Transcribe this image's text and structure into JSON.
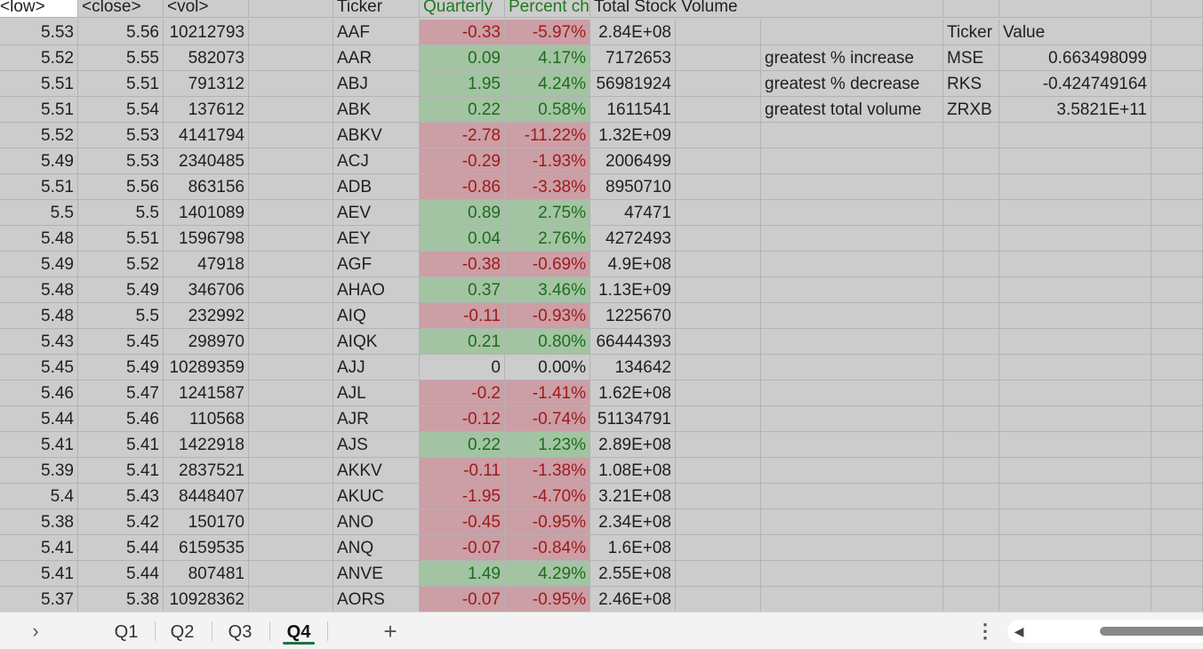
{
  "headers": {
    "low": "<low>",
    "close": "<close>",
    "vol": "<vol>",
    "ticker": "Ticker",
    "quarterly": "Quarterly",
    "percent": "Percent ch",
    "total": "Total Stock Volume"
  },
  "rows": [
    {
      "low": "5.53",
      "close": "5.56",
      "vol": "10212793",
      "ticker": "AAF",
      "qc": "-0.33",
      "pc": "-5.97%",
      "tv": "2.84E+08",
      "status": "neg"
    },
    {
      "low": "5.52",
      "close": "5.55",
      "vol": "582073",
      "ticker": "AAR",
      "qc": "0.09",
      "pc": "4.17%",
      "tv": "7172653",
      "status": "pos"
    },
    {
      "low": "5.51",
      "close": "5.51",
      "vol": "791312",
      "ticker": "ABJ",
      "qc": "1.95",
      "pc": "4.24%",
      "tv": "56981924",
      "status": "pos"
    },
    {
      "low": "5.51",
      "close": "5.54",
      "vol": "137612",
      "ticker": "ABK",
      "qc": "0.22",
      "pc": "0.58%",
      "tv": "1611541",
      "status": "pos"
    },
    {
      "low": "5.52",
      "close": "5.53",
      "vol": "4141794",
      "ticker": "ABKV",
      "qc": "-2.78",
      "pc": "-11.22%",
      "tv": "1.32E+09",
      "status": "neg"
    },
    {
      "low": "5.49",
      "close": "5.53",
      "vol": "2340485",
      "ticker": "ACJ",
      "qc": "-0.29",
      "pc": "-1.93%",
      "tv": "2006499",
      "status": "neg"
    },
    {
      "low": "5.51",
      "close": "5.56",
      "vol": "863156",
      "ticker": "ADB",
      "qc": "-0.86",
      "pc": "-3.38%",
      "tv": "8950710",
      "status": "neg"
    },
    {
      "low": "5.5",
      "close": "5.5",
      "vol": "1401089",
      "ticker": "AEV",
      "qc": "0.89",
      "pc": "2.75%",
      "tv": "47471",
      "status": "pos"
    },
    {
      "low": "5.48",
      "close": "5.51",
      "vol": "1596798",
      "ticker": "AEY",
      "qc": "0.04",
      "pc": "2.76%",
      "tv": "4272493",
      "status": "pos"
    },
    {
      "low": "5.49",
      "close": "5.52",
      "vol": "47918",
      "ticker": "AGF",
      "qc": "-0.38",
      "pc": "-0.69%",
      "tv": "4.9E+08",
      "status": "neg"
    },
    {
      "low": "5.48",
      "close": "5.49",
      "vol": "346706",
      "ticker": "AHAO",
      "qc": "0.37",
      "pc": "3.46%",
      "tv": "1.13E+09",
      "status": "pos"
    },
    {
      "low": "5.48",
      "close": "5.5",
      "vol": "232992",
      "ticker": "AIQ",
      "qc": "-0.11",
      "pc": "-0.93%",
      "tv": "1225670",
      "status": "neg"
    },
    {
      "low": "5.43",
      "close": "5.45",
      "vol": "298970",
      "ticker": "AIQK",
      "qc": "0.21",
      "pc": "0.80%",
      "tv": "66444393",
      "status": "pos"
    },
    {
      "low": "5.45",
      "close": "5.49",
      "vol": "10289359",
      "ticker": "AJJ",
      "qc": "0",
      "pc": "0.00%",
      "tv": "134642",
      "status": "zero"
    },
    {
      "low": "5.46",
      "close": "5.47",
      "vol": "1241587",
      "ticker": "AJL",
      "qc": "-0.2",
      "pc": "-1.41%",
      "tv": "1.62E+08",
      "status": "neg"
    },
    {
      "low": "5.44",
      "close": "5.46",
      "vol": "110568",
      "ticker": "AJR",
      "qc": "-0.12",
      "pc": "-0.74%",
      "tv": "51134791",
      "status": "neg"
    },
    {
      "low": "5.41",
      "close": "5.41",
      "vol": "1422918",
      "ticker": "AJS",
      "qc": "0.22",
      "pc": "1.23%",
      "tv": "2.89E+08",
      "status": "pos"
    },
    {
      "low": "5.39",
      "close": "5.41",
      "vol": "2837521",
      "ticker": "AKKV",
      "qc": "-0.11",
      "pc": "-1.38%",
      "tv": "1.08E+08",
      "status": "neg"
    },
    {
      "low": "5.4",
      "close": "5.43",
      "vol": "8448407",
      "ticker": "AKUC",
      "qc": "-1.95",
      "pc": "-4.70%",
      "tv": "3.21E+08",
      "status": "neg"
    },
    {
      "low": "5.38",
      "close": "5.42",
      "vol": "150170",
      "ticker": "ANO",
      "qc": "-0.45",
      "pc": "-0.95%",
      "tv": "2.34E+08",
      "status": "neg"
    },
    {
      "low": "5.41",
      "close": "5.44",
      "vol": "6159535",
      "ticker": "ANQ",
      "qc": "-0.07",
      "pc": "-0.84%",
      "tv": "1.6E+08",
      "status": "neg"
    },
    {
      "low": "5.41",
      "close": "5.44",
      "vol": "807481",
      "ticker": "ANVE",
      "qc": "1.49",
      "pc": "4.29%",
      "tv": "2.55E+08",
      "status": "pos"
    },
    {
      "low": "5.37",
      "close": "5.38",
      "vol": "10928362",
      "ticker": "AORS",
      "qc": "-0.07",
      "pc": "-0.95%",
      "tv": "2.46E+08",
      "status": "neg"
    }
  ],
  "summary": {
    "ticker_header": "Ticker",
    "value_header": "Value",
    "items": [
      {
        "label": "greatest % increase",
        "ticker": "MSE",
        "value": "0.663498099"
      },
      {
        "label": "greatest % decrease",
        "ticker": "RKS",
        "value": "-0.424749164"
      },
      {
        "label": "greatest total volume",
        "ticker": "ZRXB",
        "value": "3.5821E+11"
      }
    ]
  },
  "tabs": [
    "Q1",
    "Q2",
    "Q3",
    "Q4"
  ],
  "active_tab": "Q4",
  "icons": {
    "nav": "chevron-right-icon",
    "add": "plus-icon",
    "more": "more-vertical-icon",
    "scroll_left": "triangle-left-icon"
  },
  "colors": {
    "positive_fill": "#a3c4a3",
    "positive_text": "#1e6b1e",
    "negative_fill": "#cc9ea5",
    "negative_text": "#9c1b1b",
    "active_tab_underline": "#1e7145"
  }
}
